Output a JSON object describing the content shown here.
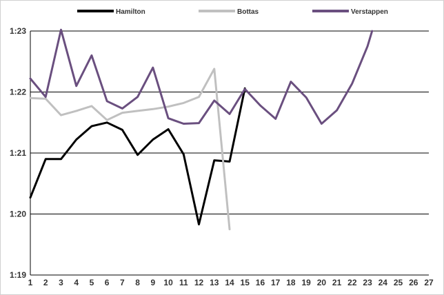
{
  "chart_data": {
    "type": "line",
    "title": "",
    "xlabel": "",
    "ylabel": "",
    "x": [
      1,
      2,
      3,
      4,
      5,
      6,
      7,
      8,
      9,
      10,
      11,
      12,
      13,
      14,
      15,
      16,
      17,
      18,
      19,
      20,
      21,
      22,
      23,
      24,
      25,
      26,
      27
    ],
    "x_ticks": [
      "1",
      "2",
      "3",
      "4",
      "5",
      "6",
      "7",
      "8",
      "9",
      "10",
      "11",
      "12",
      "13",
      "14",
      "15",
      "16",
      "17",
      "18",
      "19",
      "20",
      "21",
      "22",
      "23",
      "24",
      "25",
      "26",
      "27"
    ],
    "y_ticks": [
      "1:19",
      "1:20",
      "1:21",
      "1:22",
      "1:23"
    ],
    "ylim_seconds": [
      79,
      83
    ],
    "y_unit": "lap time (m:ss)",
    "grid": "horizontal",
    "legend_position": "top",
    "series": [
      {
        "name": "Hamilton",
        "color": "#000000",
        "x": [
          1,
          2,
          3,
          4,
          5,
          6,
          7,
          8,
          9,
          10,
          11,
          12,
          13,
          14,
          15
        ],
        "values": [
          80.27,
          80.9,
          80.9,
          81.22,
          81.44,
          81.5,
          81.38,
          80.97,
          81.22,
          81.39,
          80.98,
          79.83,
          80.88,
          80.86,
          82.06
        ]
      },
      {
        "name": "Bottas",
        "color": "#c0c0c0",
        "x": [
          1,
          2,
          3,
          4,
          5,
          6,
          7,
          8,
          9,
          10,
          11,
          12,
          13,
          14
        ],
        "values": [
          81.9,
          81.89,
          81.62,
          81.69,
          81.77,
          81.54,
          81.66,
          81.69,
          81.72,
          81.76,
          81.82,
          81.92,
          82.38,
          79.75
        ]
      },
      {
        "name": "Verstappen",
        "color": "#6a4f7f",
        "x": [
          1,
          2,
          3,
          4,
          5,
          6,
          7,
          8,
          9,
          10,
          11,
          12,
          13,
          14,
          15,
          16,
          17,
          18,
          19,
          20,
          21,
          22,
          23,
          23.3
        ],
        "values": [
          82.22,
          81.92,
          83.02,
          82.1,
          82.6,
          81.85,
          81.73,
          81.92,
          82.4,
          81.57,
          81.48,
          81.49,
          81.86,
          81.64,
          82.05,
          81.78,
          81.56,
          82.17,
          81.91,
          81.48,
          81.7,
          82.14,
          82.75,
          83.0
        ]
      }
    ]
  }
}
